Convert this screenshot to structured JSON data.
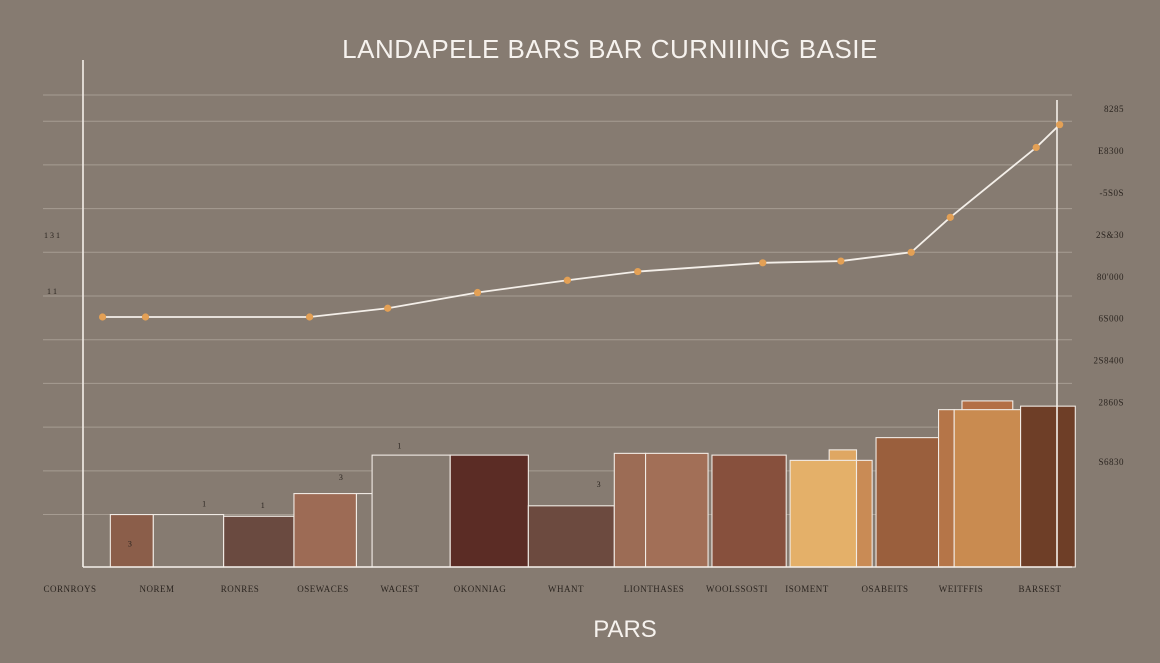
{
  "chart_data": {
    "type": "bar+line",
    "title": "LANDAPELE BARS BAR CURNIIING BASIE",
    "xlabel": "PARS",
    "ylabel": "",
    "categories": [
      "CORNROYS",
      "NOREM",
      "RONRES",
      "OSEWACES",
      "WACEST",
      "OKONNIAG",
      "WHANT",
      "LIONTHASES",
      "WOOLSSOSTI",
      "ISOMENT",
      "OSABEITS",
      "WEITFFIS",
      "BARSEST"
    ],
    "right_ticks": [
      "8285",
      "E8300",
      "-5S0S",
      "2S&30",
      "80'000",
      "6S000",
      "2S8400",
      "2860S",
      "S6830"
    ],
    "left_ticks": [
      "1 3 1",
      "1 1"
    ],
    "bar_value_labels": [
      {
        "text": "3",
        "x": 1.6,
        "y": 10
      },
      {
        "text": "1",
        "x": 2.55,
        "y": 33
      },
      {
        "text": "1",
        "x": 3.3,
        "y": 32
      },
      {
        "text": "3",
        "x": 4.3,
        "y": 48
      },
      {
        "text": "1",
        "x": 5.05,
        "y": 66
      },
      {
        "text": "3",
        "x": 7.6,
        "y": 44
      }
    ],
    "bars": [
      {
        "x": 1.35,
        "w": 0.55,
        "value": 30,
        "color": "#8b5e4a"
      },
      {
        "x": 1.9,
        "w": 0.9,
        "value": 30,
        "color": "#867b71"
      },
      {
        "x": 2.8,
        "w": 0.9,
        "value": 29,
        "color": "#6a4a40"
      },
      {
        "x": 3.7,
        "w": 0.8,
        "value": 42,
        "color": "#9d6b55"
      },
      {
        "x": 4.5,
        "w": 0.2,
        "value": 42,
        "color": "#867b71"
      },
      {
        "x": 4.7,
        "w": 1.0,
        "value": 64,
        "color": "#867b71"
      },
      {
        "x": 5.7,
        "w": 1.0,
        "value": 64,
        "color": "#5b2c25"
      },
      {
        "x": 6.7,
        "w": 1.1,
        "value": 35,
        "color": "#6c4a3f"
      },
      {
        "x": 7.8,
        "w": 0.4,
        "value": 65,
        "color": "#9c6c55"
      },
      {
        "x": 8.2,
        "w": 0.8,
        "value": 65,
        "color": "#a26f57"
      },
      {
        "x": 9.05,
        "w": 0.95,
        "value": 64,
        "color": "#87503d"
      },
      {
        "x": 10.55,
        "w": 0.35,
        "value": 67,
        "color": "#dfa763"
      },
      {
        "x": 10.05,
        "w": 0.85,
        "value": 61,
        "color": "#e4b069"
      },
      {
        "x": 10.9,
        "w": 0.2,
        "value": 61,
        "color": "#c98b55"
      },
      {
        "x": 11.15,
        "w": 0.85,
        "value": 74,
        "color": "#9a5f3d"
      },
      {
        "x": 11.95,
        "w": 0.2,
        "value": 90,
        "color": "#b57548"
      },
      {
        "x": 12.25,
        "w": 0.65,
        "value": 95,
        "color": "#b36f46"
      },
      {
        "x": 12.15,
        "w": 0.85,
        "value": 90,
        "color": "#c98b50"
      },
      {
        "x": 13.0,
        "w": 0.7,
        "value": 92,
        "color": "#6e3e27"
      }
    ],
    "line_series": [
      {
        "x": 1.25,
        "value": 143
      },
      {
        "x": 1.8,
        "value": 143
      },
      {
        "x": 3.9,
        "value": 143
      },
      {
        "x": 4.9,
        "value": 148
      },
      {
        "x": 6.05,
        "value": 157
      },
      {
        "x": 7.2,
        "value": 164
      },
      {
        "x": 8.1,
        "value": 169
      },
      {
        "x": 9.7,
        "value": 174
      },
      {
        "x": 10.7,
        "value": 175
      },
      {
        "x": 11.6,
        "value": 180
      },
      {
        "x": 12.1,
        "value": 200
      },
      {
        "x": 13.2,
        "value": 240
      },
      {
        "x": 13.5,
        "value": 253
      }
    ],
    "ylim": [
      0,
      290
    ],
    "xlim": [
      1,
      13.85
    ],
    "grid": true,
    "colors": {
      "background": "#867b71",
      "axis": "#f4efe9",
      "line": "#f4efe9",
      "points": "#e3a055"
    }
  }
}
